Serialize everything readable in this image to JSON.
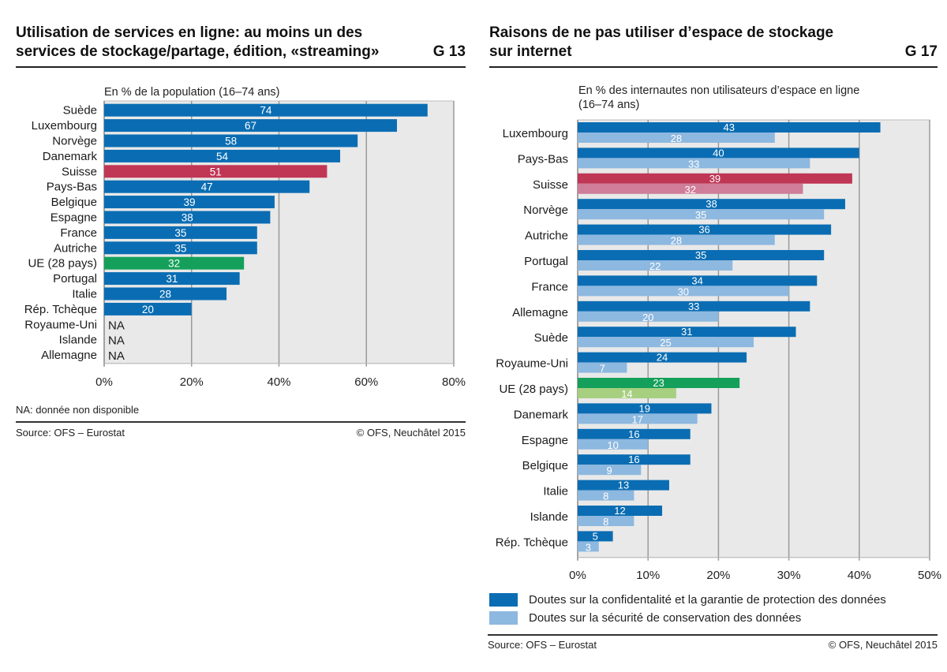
{
  "left": {
    "title_line1": "Utilisation de services en ligne: au moins un des",
    "title_line2": "services de stockage/partage, édition, «streaming»",
    "graph_number": "G 13",
    "footnote": "NA: donnée non disponible",
    "source": "Source: OFS – Eurostat",
    "copyright": "© OFS, Neuchâtel 2015"
  },
  "right": {
    "title_line1": "Raisons de ne pas utiliser d’espace de stockage",
    "title_line2": "sur internet",
    "graph_number": "G 17",
    "source": "Source: OFS – Eurostat",
    "copyright": "© OFS, Neuchâtel 2015"
  },
  "colors": {
    "primary": "#0a6db3",
    "secondary": "#8db8df",
    "highlight_switzerland": "#c03655",
    "highlight_switzerland_light": "#cf7d99",
    "highlight_eu": "#14a05a",
    "highlight_eu_light": "#a6cf80",
    "plot_bg": "#e9e9e9",
    "grid": "#9a9a9a"
  },
  "chart_data": [
    {
      "type": "bar",
      "orientation": "horizontal",
      "title": "Utilisation de services en ligne: au moins un des services de stockage/partage, édition, «streaming»",
      "subtitle": "En % de la population (16–74 ans)",
      "categories": [
        "Suède",
        "Luxembourg",
        "Norvège",
        "Danemark",
        "Suisse",
        "Pays-Bas",
        "Belgique",
        "Espagne",
        "France",
        "Autriche",
        "UE (28 pays)",
        "Portugal",
        "Italie",
        "Rép. Tchèque",
        "Royaume-Uni",
        "Islande",
        "Allemagne"
      ],
      "values": [
        74,
        67,
        58,
        54,
        51,
        47,
        39,
        38,
        35,
        35,
        32,
        31,
        28,
        20,
        null,
        null,
        null
      ],
      "labels": [
        "74",
        "67",
        "58",
        "54",
        "51",
        "47",
        "39",
        "38",
        "35",
        "35",
        "32",
        "31",
        "28",
        "20",
        "NA",
        "NA",
        "NA"
      ],
      "highlight": {
        "Suisse": "switzerland",
        "UE (28 pays)": "eu"
      },
      "xlim": [
        0,
        80
      ],
      "xticks": [
        0,
        20,
        40,
        60,
        80
      ],
      "xtick_labels": [
        "0%",
        "20%",
        "40%",
        "60%",
        "80%"
      ],
      "xlabel": "",
      "ylabel": "",
      "grid": true,
      "legend": null
    },
    {
      "type": "bar",
      "orientation": "horizontal",
      "title": "Raisons de ne pas utiliser d’espace de stockage sur internet",
      "subtitle_line1": "En % des internautes non utilisateurs d’espace en ligne",
      "subtitle_line2": "(16–74 ans)",
      "categories": [
        "Luxembourg",
        "Pays-Bas",
        "Suisse",
        "Norvège",
        "Autriche",
        "Portugal",
        "France",
        "Allemagne",
        "Suède",
        "Royaume-Uni",
        "UE (28 pays)",
        "Danemark",
        "Espagne",
        "Belgique",
        "Italie",
        "Islande",
        "Rép. Tchèque"
      ],
      "series": [
        {
          "name": "Doutes sur la confidentalité et la garantie de protection des données",
          "values": [
            43,
            40,
            39,
            38,
            36,
            35,
            34,
            33,
            31,
            24,
            23,
            19,
            16,
            16,
            13,
            12,
            5
          ]
        },
        {
          "name": "Doutes sur la sécurité de conservation des données",
          "values": [
            28,
            33,
            32,
            35,
            28,
            22,
            30,
            20,
            25,
            7,
            14,
            17,
            10,
            9,
            8,
            8,
            3
          ]
        }
      ],
      "highlight": {
        "Suisse": "switzerland",
        "UE (28 pays)": "eu"
      },
      "xlim": [
        0,
        50
      ],
      "xticks": [
        0,
        10,
        20,
        30,
        40,
        50
      ],
      "xtick_labels": [
        "0%",
        "10%",
        "20%",
        "30%",
        "40%",
        "50%"
      ],
      "xlabel": "",
      "ylabel": "",
      "grid": true,
      "legend": "bottom"
    }
  ]
}
